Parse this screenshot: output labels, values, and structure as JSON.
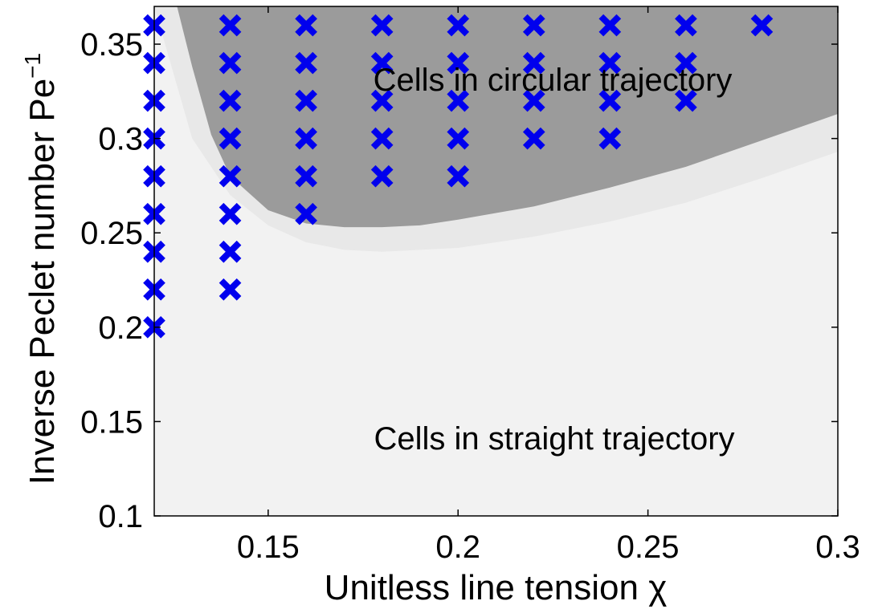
{
  "chart_data": {
    "type": "scatter",
    "xlabel": "Unitless line tension χ",
    "ylabel_main": "Inverse Peclet number Pe",
    "ylabel_sup": "−1",
    "xlim": [
      0.12,
      0.3
    ],
    "ylim": [
      0.1,
      0.37
    ],
    "x_ticks": [
      0.15,
      0.2,
      0.25,
      0.3
    ],
    "x_tick_labels": [
      "0.15",
      "0.2",
      "0.25",
      "0.3"
    ],
    "y_ticks": [
      0.1,
      0.15,
      0.2,
      0.25,
      0.3,
      0.35
    ],
    "y_tick_labels": [
      "0.1",
      "0.15",
      "0.2",
      "0.25",
      "0.3",
      "0.35"
    ],
    "grid": false,
    "marker": "x",
    "colors": {
      "marker": "#0000ee",
      "circular_region": "#9b9b9b",
      "transition_band": "#e8e8e8",
      "straight_region": "#f2f2f2"
    },
    "annotations": [
      {
        "text": "Cells in circular trajectory",
        "region": "circular"
      },
      {
        "text": "Cells in straight trajectory",
        "region": "straight"
      }
    ],
    "circular_boundary": {
      "x": [
        0.126,
        0.13,
        0.135,
        0.14,
        0.15,
        0.16,
        0.17,
        0.18,
        0.19,
        0.2,
        0.22,
        0.24,
        0.26,
        0.28,
        0.3
      ],
      "y": [
        0.37,
        0.338,
        0.302,
        0.28,
        0.262,
        0.255,
        0.253,
        0.253,
        0.254,
        0.257,
        0.264,
        0.274,
        0.285,
        0.299,
        0.313
      ]
    },
    "transition_boundary": {
      "x": [
        0.12,
        0.125,
        0.13,
        0.14,
        0.15,
        0.16,
        0.17,
        0.18,
        0.2,
        0.22,
        0.24,
        0.26,
        0.28,
        0.3
      ],
      "y": [
        0.37,
        0.335,
        0.3,
        0.27,
        0.254,
        0.245,
        0.241,
        0.24,
        0.242,
        0.248,
        0.256,
        0.266,
        0.279,
        0.293
      ]
    },
    "points": [
      {
        "x": 0.12,
        "y": 0.36
      },
      {
        "x": 0.12,
        "y": 0.34
      },
      {
        "x": 0.12,
        "y": 0.32
      },
      {
        "x": 0.12,
        "y": 0.3
      },
      {
        "x": 0.12,
        "y": 0.28
      },
      {
        "x": 0.12,
        "y": 0.26
      },
      {
        "x": 0.12,
        "y": 0.24
      },
      {
        "x": 0.12,
        "y": 0.22
      },
      {
        "x": 0.12,
        "y": 0.2
      },
      {
        "x": 0.14,
        "y": 0.36
      },
      {
        "x": 0.14,
        "y": 0.34
      },
      {
        "x": 0.14,
        "y": 0.32
      },
      {
        "x": 0.14,
        "y": 0.3
      },
      {
        "x": 0.14,
        "y": 0.28
      },
      {
        "x": 0.14,
        "y": 0.26
      },
      {
        "x": 0.14,
        "y": 0.24
      },
      {
        "x": 0.14,
        "y": 0.22
      },
      {
        "x": 0.16,
        "y": 0.36
      },
      {
        "x": 0.16,
        "y": 0.34
      },
      {
        "x": 0.16,
        "y": 0.32
      },
      {
        "x": 0.16,
        "y": 0.3
      },
      {
        "x": 0.16,
        "y": 0.28
      },
      {
        "x": 0.16,
        "y": 0.26
      },
      {
        "x": 0.18,
        "y": 0.36
      },
      {
        "x": 0.18,
        "y": 0.34
      },
      {
        "x": 0.18,
        "y": 0.32
      },
      {
        "x": 0.18,
        "y": 0.3
      },
      {
        "x": 0.18,
        "y": 0.28
      },
      {
        "x": 0.2,
        "y": 0.36
      },
      {
        "x": 0.2,
        "y": 0.34
      },
      {
        "x": 0.2,
        "y": 0.32
      },
      {
        "x": 0.2,
        "y": 0.3
      },
      {
        "x": 0.2,
        "y": 0.28
      },
      {
        "x": 0.22,
        "y": 0.36
      },
      {
        "x": 0.22,
        "y": 0.34
      },
      {
        "x": 0.22,
        "y": 0.32
      },
      {
        "x": 0.22,
        "y": 0.3
      },
      {
        "x": 0.24,
        "y": 0.36
      },
      {
        "x": 0.24,
        "y": 0.34
      },
      {
        "x": 0.24,
        "y": 0.32
      },
      {
        "x": 0.24,
        "y": 0.3
      },
      {
        "x": 0.26,
        "y": 0.36
      },
      {
        "x": 0.26,
        "y": 0.34
      },
      {
        "x": 0.26,
        "y": 0.32
      },
      {
        "x": 0.28,
        "y": 0.36
      }
    ]
  }
}
